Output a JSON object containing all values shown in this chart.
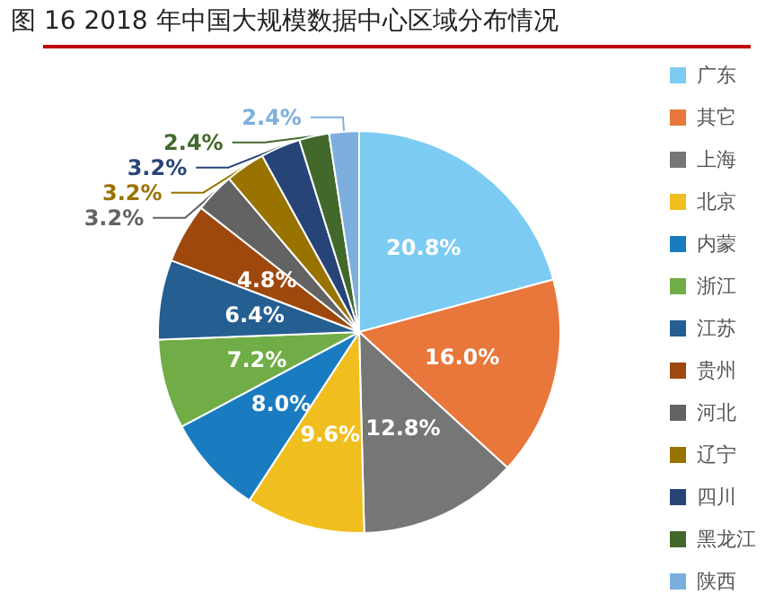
{
  "chart_data": {
    "type": "pie",
    "title": "图 16 2018 年中国大规模数据中心区域分布情况",
    "categories": [
      "广东",
      "其它",
      "上海",
      "北京",
      "内蒙",
      "浙江",
      "江苏",
      "贵州",
      "河北",
      "辽宁",
      "四川",
      "黑龙江",
      "陕西"
    ],
    "values": [
      20.8,
      16.0,
      12.8,
      9.6,
      8.0,
      7.2,
      6.4,
      4.8,
      3.2,
      3.2,
      3.2,
      2.4,
      2.4
    ],
    "colors": [
      "#7ccbf3",
      "#e9763a",
      "#767676",
      "#f0bf1f",
      "#1a7cc0",
      "#70ad47",
      "#255e91",
      "#9e480e",
      "#636363",
      "#997300",
      "#264478",
      "#43682b",
      "#7cafdd"
    ],
    "value_labels": [
      "20.8%",
      "16.0%",
      "12.8%",
      "9.6%",
      "8.0%",
      "7.2%",
      "6.4%",
      "4.8%",
      "3.2%",
      "3.2%",
      "3.2%",
      "2.4%",
      "2.4%"
    ],
    "legend": "right"
  }
}
